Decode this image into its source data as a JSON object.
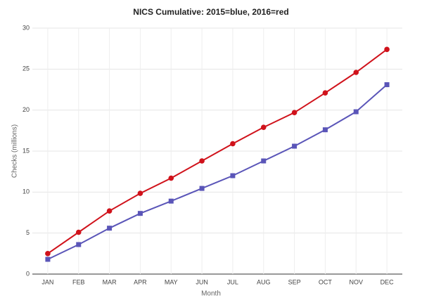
{
  "chart_data": {
    "type": "line",
    "title": "NICS Cumulative: 2015=blue, 2016=red",
    "x_label": "Month",
    "y_label": "Checks (millions)",
    "categories": [
      "JAN",
      "FEB",
      "MAR",
      "APR",
      "MAY",
      "JUN",
      "JUL",
      "AUG",
      "SEP",
      "OCT",
      "NOV",
      "DEC"
    ],
    "series": [
      {
        "color": "#5a55b8",
        "marker": "square",
        "values": [
          1.8,
          3.6,
          5.6,
          7.4,
          8.9,
          10.45,
          12.0,
          13.8,
          15.6,
          17.6,
          19.8,
          23.1
        ]
      },
      {
        "color": "#d0121b",
        "marker": "circle",
        "values": [
          2.5,
          5.1,
          7.7,
          9.85,
          11.7,
          13.8,
          15.9,
          17.9,
          19.7,
          22.1,
          24.6,
          27.4
        ]
      }
    ],
    "ylim": [
      0,
      30
    ],
    "yticks": [
      0,
      5,
      10,
      15,
      20,
      25,
      30
    ],
    "grid": true
  }
}
